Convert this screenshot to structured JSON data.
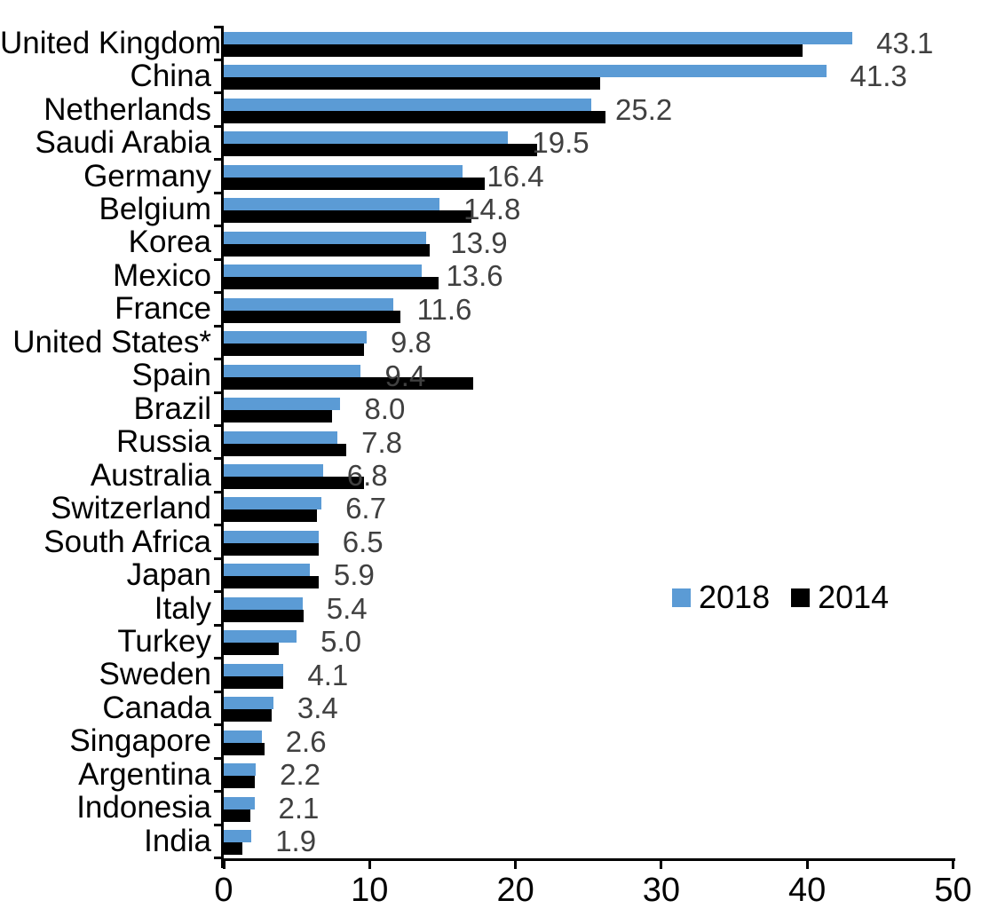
{
  "chart_data": {
    "type": "bar",
    "orientation": "horizontal",
    "title": "",
    "xlabel": "",
    "ylabel": "",
    "grid": false,
    "xlim": [
      0,
      50
    ],
    "x_tick_labels": [
      "0",
      "10",
      "20",
      "30",
      "40",
      "50"
    ],
    "x_tick_values": [
      0,
      10,
      20,
      30,
      40,
      50
    ],
    "categories": [
      "United Kingdom",
      "China",
      "Netherlands",
      "Saudi Arabia",
      "Germany",
      "Belgium",
      "Korea",
      "Mexico",
      "France",
      "United States*",
      "Spain",
      "Brazil",
      "Russia",
      "Australia",
      "Switzerland",
      "South Africa",
      "Japan",
      "Italy",
      "Turkey",
      "Sweden",
      "Canada",
      "Singapore",
      "Argentina",
      "Indonesia",
      "India"
    ],
    "series": [
      {
        "name": "2018",
        "color": "#5B9BD5",
        "values": [
          43.1,
          41.3,
          25.2,
          19.5,
          16.4,
          14.8,
          13.9,
          13.6,
          11.6,
          9.8,
          9.4,
          8.0,
          7.8,
          6.8,
          6.7,
          6.5,
          5.9,
          5.4,
          5.0,
          4.1,
          3.4,
          2.6,
          2.2,
          2.1,
          1.9
        ],
        "data_labels": [
          "43.1",
          "41.3",
          "25.2",
          "19.5",
          "16.4",
          "14.8",
          "13.9",
          "13.6",
          "11.6",
          "9.8",
          "9.4",
          "8.0",
          "7.8",
          "6.8",
          "6.7",
          "6.5",
          "5.9",
          "5.4",
          "5.0",
          "4.1",
          "3.4",
          "2.6",
          "2.2",
          "2.1",
          "1.9"
        ]
      },
      {
        "name": "2014",
        "color": "#000000",
        "values": [
          39.7,
          25.8,
          26.2,
          21.5,
          17.9,
          17.0,
          14.1,
          14.7,
          12.1,
          9.6,
          17.1,
          7.4,
          8.4,
          9.6,
          6.4,
          6.5,
          6.5,
          5.5,
          3.8,
          4.1,
          3.3,
          2.8,
          2.1,
          1.8,
          1.3
        ],
        "data_labels": []
      }
    ],
    "legend": {
      "position": "middle-right",
      "entries": [
        {
          "label": "2018",
          "color": "#5B9BD5"
        },
        {
          "label": "2014",
          "color": "#000000"
        }
      ]
    },
    "data_label_color": "#404040",
    "axis_color": "#000000"
  }
}
